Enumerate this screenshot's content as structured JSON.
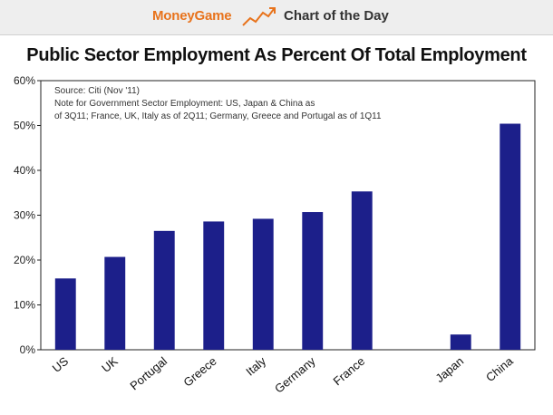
{
  "banner": {
    "brand": "MoneyGame",
    "section": "Chart of the Day",
    "logo_icon": "chart-trend-icon",
    "brand_color": "#e8731c"
  },
  "chart_data": {
    "type": "bar",
    "title": "Public Sector Employment As Percent Of Total Employment",
    "categories": [
      "US",
      "UK",
      "Portugal",
      "Greece",
      "Italy",
      "Germany",
      "France",
      "",
      "Japan",
      "China"
    ],
    "values": [
      15.9,
      20.7,
      26.5,
      28.6,
      29.2,
      30.7,
      35.3,
      null,
      3.4,
      50.4
    ],
    "yticks": [
      "0%",
      "10%",
      "20%",
      "30%",
      "40%",
      "50%",
      "60%"
    ],
    "ylim": [
      0,
      60
    ],
    "xlabel": "",
    "ylabel": "",
    "grid": false,
    "bar_color": "#1c1f8a",
    "notes": [
      "Source: Citi (Nov '11)",
      "Note for Government Sector Employment: US, Japan & China as",
      "of 3Q11; France, UK, Italy as of 2Q11; Germany, Greece and Portugal as of 1Q11"
    ]
  }
}
